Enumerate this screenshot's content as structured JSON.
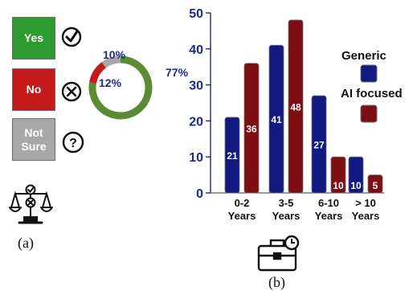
{
  "panel_a": {
    "options": [
      {
        "label": "Yes",
        "color": "#2e9b30",
        "icon": "check-circle-icon"
      },
      {
        "label": "No",
        "color": "#c51b1b",
        "icon": "x-circle-icon"
      },
      {
        "label": "Not Sure",
        "color": "#a8a8a8",
        "icon": "question-circle-icon"
      }
    ],
    "caption": "(a)",
    "emblem_icon": "scales-icon"
  },
  "panel_b": {
    "caption": "(b)",
    "emblem_icon": "briefcase-clock-icon"
  },
  "chart_data": [
    {
      "type": "pie",
      "variant": "donut",
      "slices": [
        {
          "name": "Yes",
          "value": 77,
          "label": "77%",
          "color": "#5b8b33"
        },
        {
          "name": "No",
          "value": 12,
          "label": "12%",
          "color": "#c51b1b"
        },
        {
          "name": "Not Sure",
          "value": 10,
          "label": "10%",
          "color": "#a8a8a8"
        }
      ],
      "label_color": "#1e2a8c"
    },
    {
      "type": "bar",
      "categories": [
        "0-2\nYears",
        "3-5\nYears",
        "6-10\nYears",
        "> 10\nYears"
      ],
      "series": [
        {
          "name": "Generic",
          "values": [
            21,
            41,
            27,
            10
          ],
          "color": "#111a80"
        },
        {
          "name": "AI focused",
          "values": [
            36,
            48,
            10,
            5
          ],
          "color": "#7d0f14"
        }
      ],
      "ylim": [
        0,
        50
      ],
      "yticks": [
        0,
        10,
        20,
        30,
        40,
        50
      ],
      "ytick_color": "#1e2a8c",
      "legend": "right",
      "grid": false,
      "xlabel": "",
      "ylabel": "",
      "title": ""
    }
  ]
}
